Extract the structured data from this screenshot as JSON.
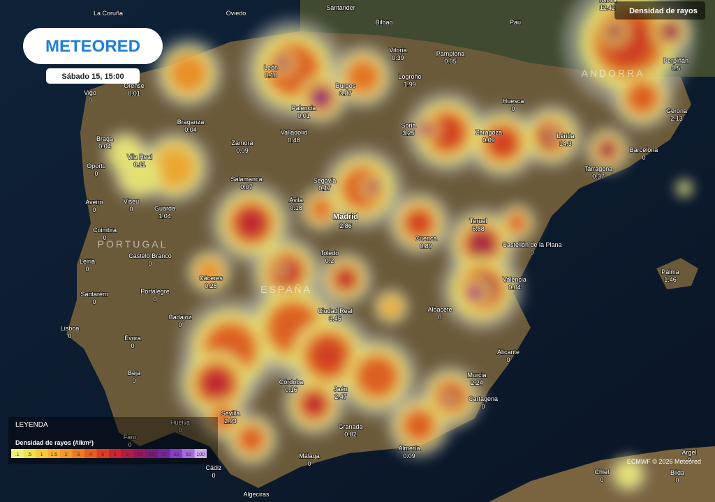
{
  "header": {
    "logo": "METEORED",
    "time": "Sábado 15, 15:00",
    "layer": "Densidad de rayos"
  },
  "cities": [
    {
      "name": "La Coruña"
    },
    {
      "name": "Oviedo"
    },
    {
      "name": "Santander"
    },
    {
      "name": "Bilbao"
    },
    {
      "name": "Pau"
    },
    {
      "name": "Tolosa",
      "value": 12.42
    },
    {
      "name": "Vitoria",
      "value": 0.39
    },
    {
      "name": "Pamplona",
      "value": 0.05
    },
    {
      "name": "Perpiñán",
      "value": 0.5
    },
    {
      "name": "León",
      "value": 0.18
    },
    {
      "name": "Orense",
      "value": 0.01
    },
    {
      "name": "Burgos",
      "value": 3.87
    },
    {
      "name": "Logroño",
      "value": 1.99
    },
    {
      "name": "Huesca",
      "value": 0
    },
    {
      "name": "Vigo",
      "value": 0
    },
    {
      "name": "Palencia",
      "value": 0.01
    },
    {
      "name": "Gerona",
      "value": 2.13
    },
    {
      "name": "Braganza",
      "value": 0.04
    },
    {
      "name": "Soria",
      "value": 3.25
    },
    {
      "name": "Zaragoza",
      "value": 0.09
    },
    {
      "name": "Lérida",
      "value": 14.3
    },
    {
      "name": "Valladolid",
      "value": 0.48
    },
    {
      "name": "Braga",
      "value": 0.04
    },
    {
      "name": "Zamora",
      "value": 0.09
    },
    {
      "name": "Barcelona",
      "value": 0
    },
    {
      "name": "Vila Real",
      "value": 0.11
    },
    {
      "name": "Oporto",
      "value": 0
    },
    {
      "name": "Tarragona",
      "value": 0.37
    },
    {
      "name": "Salamanca",
      "value": 0.07
    },
    {
      "name": "Segovia",
      "value": 0.17
    },
    {
      "name": "Aveiro",
      "value": 0
    },
    {
      "name": "Viseu",
      "value": 0
    },
    {
      "name": "Ávila",
      "value": 0.18
    },
    {
      "name": "Madrid",
      "value": 2.86
    },
    {
      "name": "Guarda",
      "value": 1.04
    },
    {
      "name": "Teruel",
      "value": 6.88
    },
    {
      "name": "Coimbra",
      "value": 0
    },
    {
      "name": "Cuenca",
      "value": 0.89
    },
    {
      "name": "Castellón de la Plana",
      "value": 0
    },
    {
      "name": "Toledo",
      "value": 0.2
    },
    {
      "name": "Leiria",
      "value": 0
    },
    {
      "name": "Castelo Branco",
      "value": 0
    },
    {
      "name": "Palma",
      "value": 1.46
    },
    {
      "name": "Valencia",
      "value": 0.04
    },
    {
      "name": "Cáceres",
      "value": 0.28
    },
    {
      "name": "Santarém",
      "value": 0
    },
    {
      "name": "Portalegre",
      "value": 0
    },
    {
      "name": "Ciudad Real",
      "value": 3.45
    },
    {
      "name": "Albacete",
      "value": 0
    },
    {
      "name": "Badajoz",
      "value": 0
    },
    {
      "name": "Lisboa",
      "value": 0
    },
    {
      "name": "Évora",
      "value": 0
    },
    {
      "name": "Alicante",
      "value": 0
    },
    {
      "name": "Beja",
      "value": 0
    },
    {
      "name": "Murcia",
      "value": 2.24
    },
    {
      "name": "Córdoba",
      "value": 0.16
    },
    {
      "name": "Jaén",
      "value": 2.47
    },
    {
      "name": "Cartagena",
      "value": 0
    },
    {
      "name": "Sevilla",
      "value": 2.93
    },
    {
      "name": "Huelva",
      "value": 0
    },
    {
      "name": "Granada",
      "value": 0.82
    },
    {
      "name": "Faro",
      "value": 0
    },
    {
      "name": "Almería",
      "value": 0.09
    },
    {
      "name": "Argel",
      "value": 0
    },
    {
      "name": "Málaga",
      "value": 0
    },
    {
      "name": "Cádiz",
      "value": 0
    },
    {
      "name": "Chlef",
      "value": 0
    },
    {
      "name": "Blida",
      "value": 0
    },
    {
      "name": "Algeciras"
    }
  ],
  "regions": [
    "PORTUGAL",
    "ESPAÑA",
    "ANDORRA"
  ],
  "legend": {
    "title": "LEYENDA",
    "subtitle": "Densidad de rayos (#/km²)",
    "levels": [
      {
        "label": ".1",
        "color": "#f2f07a"
      },
      {
        "label": ".5",
        "color": "#f6e04a"
      },
      {
        "label": "1",
        "color": "#f8c93a"
      },
      {
        "label": "1.5",
        "color": "#f8b030"
      },
      {
        "label": "2",
        "color": "#f59628"
      },
      {
        "label": "3",
        "color": "#f07a22"
      },
      {
        "label": "4",
        "color": "#e85e20"
      },
      {
        "label": "5",
        "color": "#de3c22"
      },
      {
        "label": "6",
        "color": "#cc2430"
      },
      {
        "label": "8",
        "color": "#b01c44"
      },
      {
        "label": "10",
        "color": "#941a5c"
      },
      {
        "label": "15",
        "color": "#7c1a78"
      },
      {
        "label": "20",
        "color": "#7a22a0"
      },
      {
        "label": "30",
        "color": "#8a3cc8"
      },
      {
        "label": "50",
        "color": "#a868e0"
      },
      {
        "label": "100",
        "color": "#d0a8f0"
      }
    ]
  },
  "credit": "ECMWF © 2026 Meteored"
}
